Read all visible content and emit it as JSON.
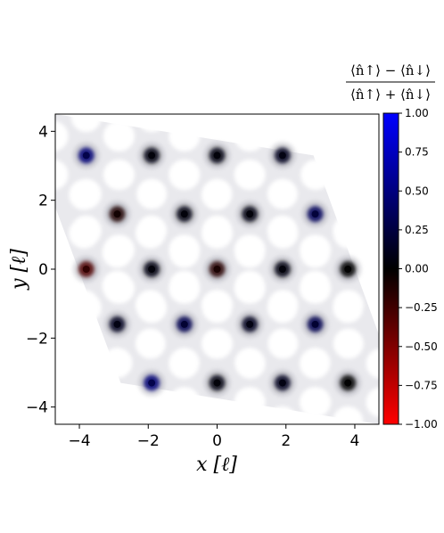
{
  "chart_data": {
    "type": "heatmap",
    "xlabel": "x [ℓ]",
    "ylabel": "y [ℓ]",
    "xlim": [
      -4.7,
      4.7
    ],
    "ylim": [
      -4.5,
      4.5
    ],
    "x_ticks": [
      -4,
      -2,
      0,
      2,
      4
    ],
    "x_tick_labels": [
      "−4",
      "−2",
      "0",
      "2",
      "4"
    ],
    "y_ticks": [
      -4,
      -2,
      0,
      2,
      4
    ],
    "y_tick_labels": [
      "−4",
      "−2",
      "0",
      "2",
      "4"
    ],
    "domain_corners": [
      [
        -4.7,
        4.5
      ],
      [
        2.8,
        3.3
      ],
      [
        4.7,
        -1.9
      ],
      [
        4.7,
        -4.5
      ],
      [
        -2.8,
        -3.3
      ],
      [
        -4.7,
        1.8
      ]
    ],
    "lattice_spacing": 1.93,
    "colorbar": {
      "title_numerator": "⟨n̂↑⟩ − ⟨n̂↓⟩",
      "title_denominator": "⟨n̂↑⟩ + ⟨n̂↓⟩",
      "vmin": -1.0,
      "vmax": 1.0,
      "ticks": [
        1.0,
        0.75,
        0.5,
        0.25,
        0.0,
        -0.25,
        -0.5,
        -0.75,
        -1.0
      ],
      "tick_labels": [
        "1.00",
        "0.75",
        "0.50",
        "0.25",
        "0.00",
        "−0.25",
        "−0.50",
        "−0.75",
        "−1.00"
      ],
      "colors": [
        "#ff0000",
        "#000000",
        "#0000ff"
      ]
    },
    "dark_sites": [
      {
        "x": -3.8,
        "y": 3.3,
        "polarization": 0.45
      },
      {
        "x": -1.9,
        "y": 3.3,
        "polarization": 0.05
      },
      {
        "x": 0.0,
        "y": 3.3,
        "polarization": 0.05
      },
      {
        "x": 1.9,
        "y": 3.3,
        "polarization": 0.1
      },
      {
        "x": -2.9,
        "y": 1.6,
        "polarization": -0.1
      },
      {
        "x": -0.95,
        "y": 1.6,
        "polarization": 0.05
      },
      {
        "x": 0.95,
        "y": 1.6,
        "polarization": 0.05
      },
      {
        "x": 2.85,
        "y": 1.6,
        "polarization": 0.35
      },
      {
        "x": -3.8,
        "y": 0.0,
        "polarization": -0.3
      },
      {
        "x": -1.9,
        "y": 0.0,
        "polarization": 0.05
      },
      {
        "x": 0.0,
        "y": 0.0,
        "polarization": -0.15
      },
      {
        "x": 1.9,
        "y": 0.0,
        "polarization": 0.05
      },
      {
        "x": 3.8,
        "y": 0.0,
        "polarization": 0.0
      },
      {
        "x": -2.9,
        "y": -1.6,
        "polarization": 0.1
      },
      {
        "x": -0.95,
        "y": -1.6,
        "polarization": 0.3
      },
      {
        "x": 0.95,
        "y": -1.6,
        "polarization": 0.1
      },
      {
        "x": 2.85,
        "y": -1.6,
        "polarization": 0.3
      },
      {
        "x": -1.9,
        "y": -3.3,
        "polarization": 0.45
      },
      {
        "x": 0.0,
        "y": -3.3,
        "polarization": 0.05
      },
      {
        "x": 1.9,
        "y": -3.3,
        "polarization": 0.1
      },
      {
        "x": 3.8,
        "y": -3.3,
        "polarization": 0.0
      }
    ]
  }
}
